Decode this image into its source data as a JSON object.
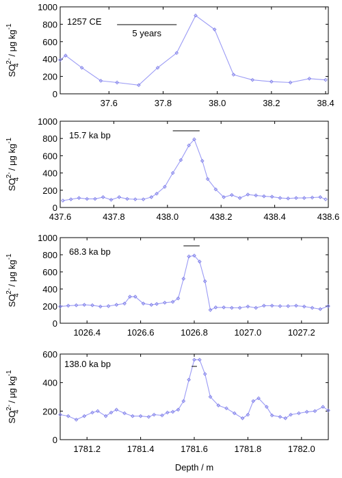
{
  "chart_data": [
    {
      "type": "line",
      "annotation": "1257 CE",
      "scale_label": "5 years",
      "scale_bar": [
        37.63,
        37.85
      ],
      "ylabel_main": "SO",
      "ylabel_sup": "2-",
      "ylabel_sub": "4",
      "ylabel_unit": " / μg kg",
      "ylabel_unit_sup": "-1",
      "xlim": [
        37.42,
        38.41
      ],
      "ylim": [
        0,
        1000
      ],
      "xticks": [
        "37.6",
        "37.8",
        "38.0",
        "38.2",
        "38.4"
      ],
      "yticks": [
        "0",
        "200",
        "400",
        "600",
        "800",
        "1000"
      ],
      "color": "#9a9af5",
      "x": [
        37.42,
        37.44,
        37.5,
        37.57,
        37.63,
        37.71,
        37.78,
        37.85,
        37.92,
        37.99,
        38.06,
        38.13,
        38.2,
        38.27,
        38.34,
        38.4
      ],
      "y": [
        390,
        440,
        300,
        150,
        130,
        100,
        300,
        470,
        900,
        740,
        220,
        160,
        140,
        130,
        175,
        160
      ]
    },
    {
      "type": "line",
      "annotation": "15.7 ka bp",
      "scale_bar": [
        438.02,
        438.12
      ],
      "ylabel_main": "SO",
      "ylabel_sup": "2-",
      "ylabel_sub": "4",
      "ylabel_unit": " / μg kg",
      "ylabel_unit_sup": "-1",
      "xlim": [
        437.6,
        438.6
      ],
      "ylim": [
        0,
        1000
      ],
      "xticks": [
        "437.6",
        "437.8",
        "438.0",
        "438.2",
        "438.4",
        "438.6"
      ],
      "yticks": [
        "0",
        "200",
        "400",
        "600",
        "800",
        "1000"
      ],
      "color": "#9a9af5",
      "x": [
        437.61,
        437.64,
        437.67,
        437.7,
        437.73,
        437.76,
        437.79,
        437.82,
        437.85,
        437.88,
        437.91,
        437.94,
        437.96,
        437.99,
        438.02,
        438.05,
        438.08,
        438.1,
        438.13,
        438.15,
        438.18,
        438.21,
        438.24,
        438.27,
        438.3,
        438.33,
        438.36,
        438.39,
        438.42,
        438.45,
        438.48,
        438.51,
        438.54,
        438.57,
        438.59
      ],
      "y": [
        80,
        95,
        110,
        100,
        100,
        120,
        90,
        120,
        100,
        95,
        95,
        120,
        160,
        240,
        400,
        550,
        720,
        790,
        540,
        330,
        210,
        120,
        145,
        110,
        150,
        140,
        130,
        125,
        110,
        105,
        110,
        110,
        115,
        120,
        95
      ]
    },
    {
      "type": "line",
      "annotation": "68.3 ka bp",
      "scale_bar": [
        1026.76,
        1026.82
      ],
      "ylabel_main": "SO",
      "ylabel_sup": "2-",
      "ylabel_sub": "4",
      "ylabel_unit": " / μg kg",
      "ylabel_unit_sup": "-1",
      "xlim": [
        1026.3,
        1027.3
      ],
      "ylim": [
        0,
        1000
      ],
      "xticks": [
        "1026.4",
        "1026.6",
        "1026.8",
        "1027.0",
        "1027.2"
      ],
      "yticks": [
        "0",
        "200",
        "400",
        "600",
        "800",
        "1000"
      ],
      "color": "#9a9af5",
      "x": [
        1026.3,
        1026.33,
        1026.36,
        1026.39,
        1026.42,
        1026.45,
        1026.48,
        1026.51,
        1026.54,
        1026.56,
        1026.58,
        1026.61,
        1026.64,
        1026.66,
        1026.69,
        1026.72,
        1026.74,
        1026.76,
        1026.78,
        1026.8,
        1026.82,
        1026.84,
        1026.86,
        1026.88,
        1026.91,
        1026.94,
        1026.97,
        1027.0,
        1027.03,
        1027.06,
        1027.09,
        1027.12,
        1027.15,
        1027.18,
        1027.21,
        1027.24,
        1027.27,
        1027.3
      ],
      "y": [
        195,
        205,
        210,
        215,
        210,
        195,
        200,
        215,
        230,
        310,
        310,
        230,
        215,
        225,
        240,
        250,
        290,
        520,
        780,
        790,
        720,
        490,
        155,
        185,
        185,
        180,
        180,
        195,
        180,
        205,
        205,
        200,
        200,
        205,
        195,
        180,
        165,
        200
      ]
    },
    {
      "type": "line",
      "annotation": "138.0 ka bp",
      "scale_bar": [
        1781.59,
        1781.61
      ],
      "ylabel_main": "SO",
      "ylabel_sup": "2-",
      "ylabel_sub": "4",
      "ylabel_unit": " / μg kg",
      "ylabel_unit_sup": "-1",
      "xlabel": "Depth / m",
      "xlim": [
        1781.1,
        1782.1
      ],
      "ylim": [
        0,
        600
      ],
      "xticks": [
        "1781.2",
        "1781.4",
        "1781.6",
        "1781.8",
        "1782.0"
      ],
      "yticks": [
        "0",
        "200",
        "400",
        "600"
      ],
      "color": "#9a9af5",
      "x": [
        1781.1,
        1781.13,
        1781.16,
        1781.19,
        1781.22,
        1781.24,
        1781.27,
        1781.29,
        1781.31,
        1781.34,
        1781.37,
        1781.4,
        1781.43,
        1781.45,
        1781.48,
        1781.5,
        1781.52,
        1781.54,
        1781.56,
        1781.58,
        1781.6,
        1781.62,
        1781.64,
        1781.66,
        1781.69,
        1781.72,
        1781.75,
        1781.78,
        1781.8,
        1781.82,
        1781.84,
        1781.87,
        1781.89,
        1781.92,
        1781.94,
        1781.96,
        1781.99,
        1782.02,
        1782.05,
        1782.08,
        1782.1
      ],
      "y": [
        175,
        165,
        140,
        165,
        190,
        200,
        165,
        190,
        210,
        185,
        165,
        165,
        160,
        175,
        170,
        190,
        195,
        210,
        270,
        420,
        560,
        560,
        460,
        300,
        240,
        220,
        185,
        150,
        175,
        270,
        290,
        230,
        170,
        160,
        150,
        175,
        185,
        195,
        200,
        230,
        205
      ]
    }
  ]
}
